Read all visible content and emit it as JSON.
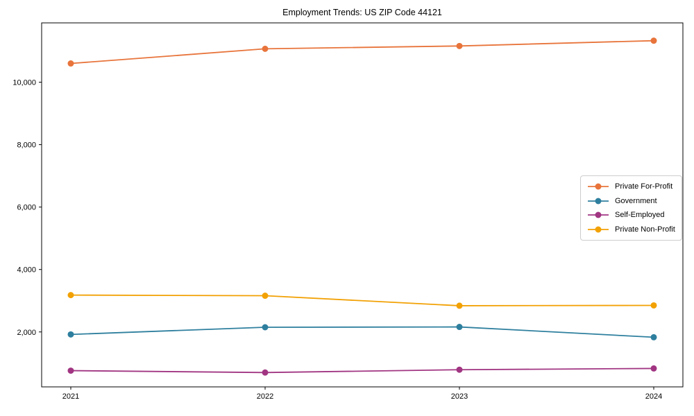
{
  "chart_data": {
    "type": "line",
    "title": "Employment Trends: US ZIP Code 44121",
    "categories": [
      "2021",
      "2022",
      "2023",
      "2024"
    ],
    "series": [
      {
        "name": "Private For-Profit",
        "color": "#E8743B",
        "values": [
          10600,
          11070,
          11160,
          11330
        ]
      },
      {
        "name": "Government",
        "color": "#2E7F9E",
        "values": [
          1920,
          2150,
          2160,
          1830
        ]
      },
      {
        "name": "Self-Employed",
        "color": "#A13582",
        "values": [
          760,
          700,
          790,
          830
        ]
      },
      {
        "name": "Private Non-Profit",
        "color": "#F2A104",
        "values": [
          3180,
          3160,
          2840,
          2850
        ]
      }
    ],
    "xlabel": "",
    "ylabel": "",
    "yticks": [
      2000,
      4000,
      6000,
      8000,
      10000
    ],
    "ylim": [
      240,
      11900
    ],
    "grid": false,
    "marker": "circle",
    "legend_position": "center-right",
    "frame_color": "#000000",
    "tick_label_color": "#000000",
    "tick_font_size": 11
  }
}
